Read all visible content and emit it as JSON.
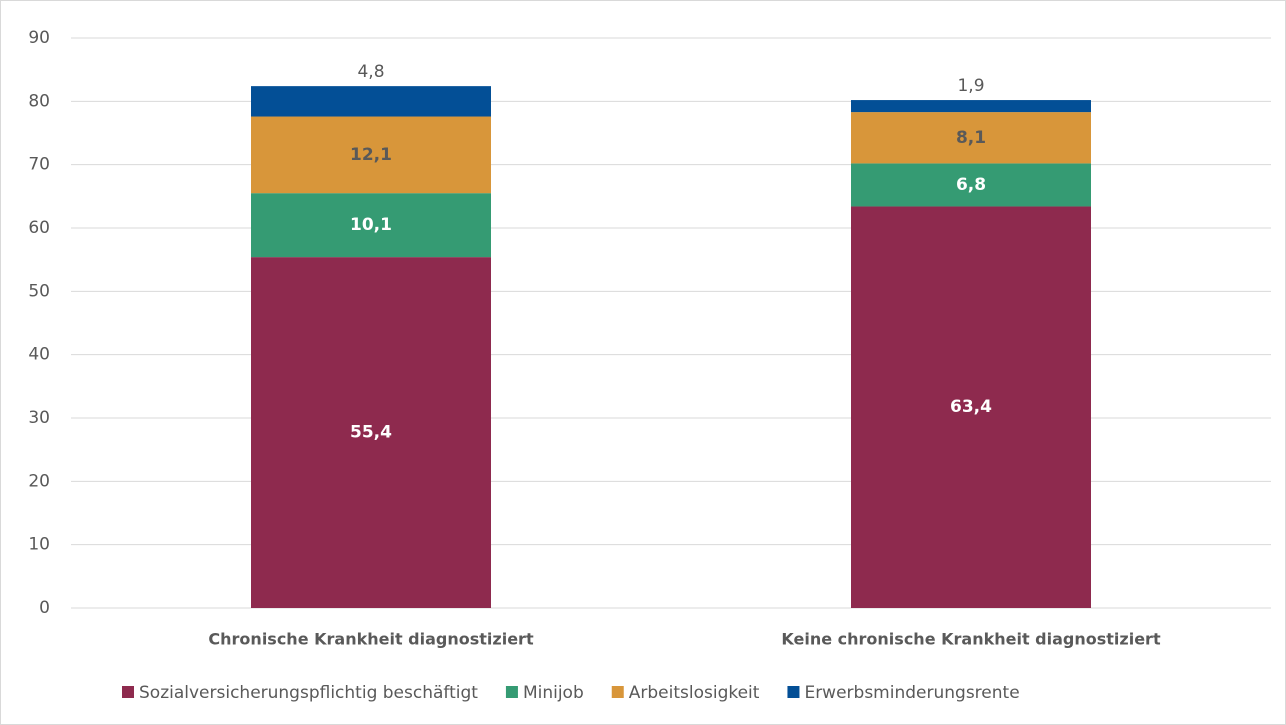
{
  "chart_data": {
    "type": "stacked_bar",
    "categories": [
      "Chronische Krankheit diagnostiziert",
      "Keine chronische Krankheit diagnostiziert"
    ],
    "series": [
      {
        "name": "Sozialversicherungspflichtig beschäftigt",
        "color": "#8e2a4e",
        "values": [
          55.4,
          63.4
        ],
        "value_labels": [
          "55,4",
          "63,4"
        ]
      },
      {
        "name": "Minijob",
        "color": "#359b73",
        "values": [
          10.1,
          6.8
        ],
        "value_labels": [
          "10,1",
          "6,8"
        ]
      },
      {
        "name": "Arbeitslosigkeit",
        "color": "#d8963a",
        "values": [
          12.1,
          8.1
        ],
        "value_labels": [
          "12,1",
          "8,1"
        ]
      },
      {
        "name": "Erwerbsminderungsrente",
        "color": "#034f96",
        "values": [
          4.8,
          1.9
        ],
        "value_labels": [
          "4,8",
          "1,9"
        ]
      }
    ],
    "ylim": [
      0,
      90
    ],
    "yticks": [
      0,
      10,
      20,
      30,
      40,
      50,
      60,
      70,
      80,
      90
    ],
    "grid": true,
    "legend": "bottom"
  }
}
